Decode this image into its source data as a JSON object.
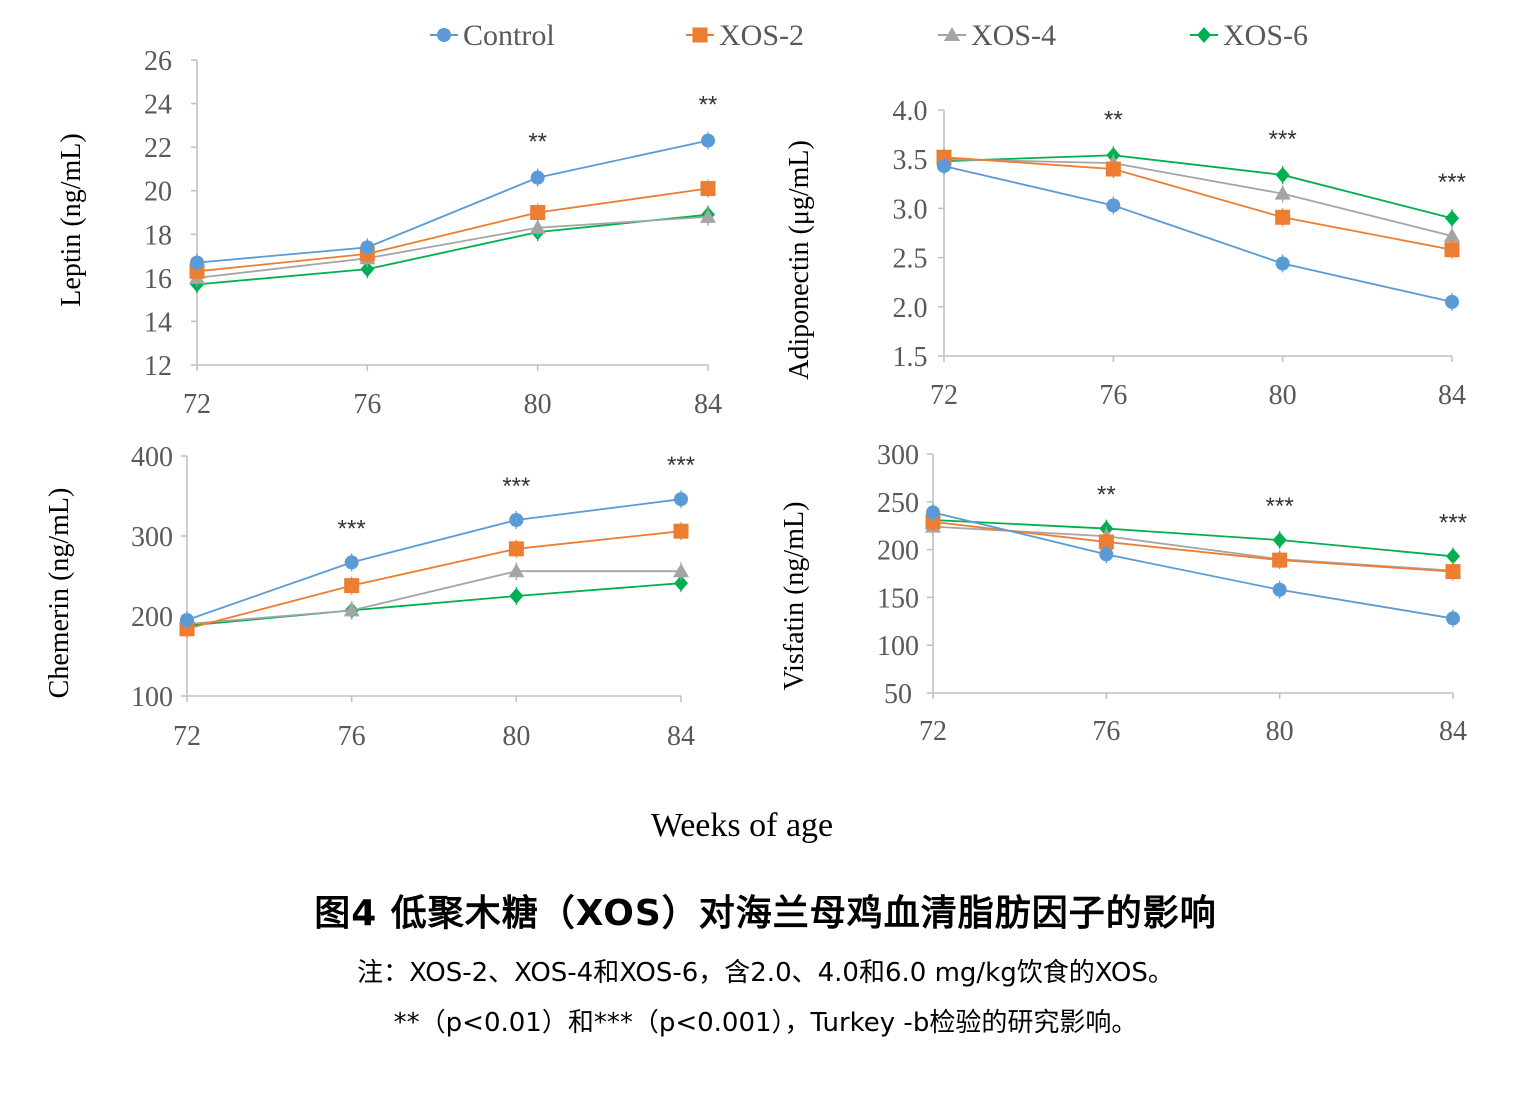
{
  "legend": [
    {
      "name": "Control",
      "color": "#5B9BD5",
      "marker": "circle"
    },
    {
      "name": "XOS-2",
      "color": "#ED7D31",
      "marker": "square"
    },
    {
      "name": "XOS-4",
      "color": "#A5A5A5",
      "marker": "triangle"
    },
    {
      "name": "XOS-6",
      "color": "#00B050",
      "marker": "diamond"
    }
  ],
  "shared_xlabel": "Weeks of age",
  "caption": {
    "title": "图4 低聚木糖（XOS）对海兰母鸡血清脂肪因子的影响",
    "note1": "注：XOS-2、XOS-4和XOS-6，含2.0、4.0和6.0 mg/kg饮食的XOS。",
    "note2": "**（p<0.01）和***（p<0.001），Turkey -b检验的研究影响。"
  },
  "chart_data": [
    {
      "type": "line",
      "x": [
        72,
        76,
        80,
        84
      ],
      "ylabel": "Leptin (ng/mL)",
      "ylim": [
        12,
        26
      ],
      "yticks": [
        "12",
        "14",
        "16",
        "18",
        "20",
        "22",
        "24",
        "26"
      ],
      "xticks": [
        "72",
        "76",
        "80",
        "84"
      ],
      "grid": false,
      "series": [
        {
          "name": "Control",
          "values": [
            16.7,
            17.4,
            20.6,
            22.3
          ]
        },
        {
          "name": "XOS-2",
          "values": [
            16.3,
            17.1,
            19.0,
            20.1
          ]
        },
        {
          "name": "XOS-4",
          "values": [
            16.0,
            16.9,
            18.3,
            18.8
          ]
        },
        {
          "name": "XOS-6",
          "values": [
            15.7,
            16.4,
            18.1,
            18.9
          ]
        }
      ],
      "significance": [
        "",
        "",
        "**",
        "**"
      ]
    },
    {
      "type": "line",
      "x": [
        72,
        76,
        80,
        84
      ],
      "ylabel": "Adiponectin (μg/mL)",
      "ylim": [
        1.5,
        4.0
      ],
      "yticks": [
        "1.5",
        "2.0",
        "2.5",
        "3.0",
        "3.5",
        "4.0"
      ],
      "xticks": [
        "72",
        "76",
        "80",
        "84"
      ],
      "grid": false,
      "series": [
        {
          "name": "Control",
          "values": [
            3.43,
            3.03,
            2.44,
            2.05
          ]
        },
        {
          "name": "XOS-2",
          "values": [
            3.52,
            3.4,
            2.91,
            2.58
          ]
        },
        {
          "name": "XOS-4",
          "values": [
            3.5,
            3.46,
            3.15,
            2.72
          ]
        },
        {
          "name": "XOS-6",
          "values": [
            3.48,
            3.54,
            3.34,
            2.9
          ]
        }
      ],
      "significance": [
        "",
        "**",
        "***",
        "***"
      ]
    },
    {
      "type": "line",
      "x": [
        72,
        76,
        80,
        84
      ],
      "ylabel": "Chemerin (ng/mL)",
      "ylim": [
        100,
        400
      ],
      "yticks": [
        "100",
        "200",
        "300",
        "400"
      ],
      "xticks": [
        "72",
        "76",
        "80",
        "84"
      ],
      "grid": false,
      "series": [
        {
          "name": "Control",
          "values": [
            195,
            267,
            320,
            346
          ]
        },
        {
          "name": "XOS-2",
          "values": [
            184,
            238,
            284,
            306
          ]
        },
        {
          "name": "XOS-4",
          "values": [
            190,
            207,
            256,
            256
          ]
        },
        {
          "name": "XOS-6",
          "values": [
            188,
            207,
            225,
            241
          ]
        }
      ],
      "significance": [
        "",
        "***",
        "***",
        "***"
      ]
    },
    {
      "type": "line",
      "x": [
        72,
        76,
        80,
        84
      ],
      "ylabel": "Visfatin (ng/mL)",
      "ylim": [
        50,
        300
      ],
      "yticks": [
        "50",
        "100",
        "150",
        "200",
        "250",
        "300"
      ],
      "xticks": [
        "72",
        "76",
        "80",
        "84"
      ],
      "grid": false,
      "series": [
        {
          "name": "Control",
          "values": [
            239,
            195,
            158,
            128
          ]
        },
        {
          "name": "XOS-2",
          "values": [
            229,
            208,
            189,
            177
          ]
        },
        {
          "name": "XOS-4",
          "values": [
            224,
            214,
            190,
            178
          ]
        },
        {
          "name": "XOS-6",
          "values": [
            231,
            222,
            210,
            193
          ]
        }
      ],
      "significance": [
        "",
        "**",
        "***",
        "***"
      ]
    }
  ]
}
